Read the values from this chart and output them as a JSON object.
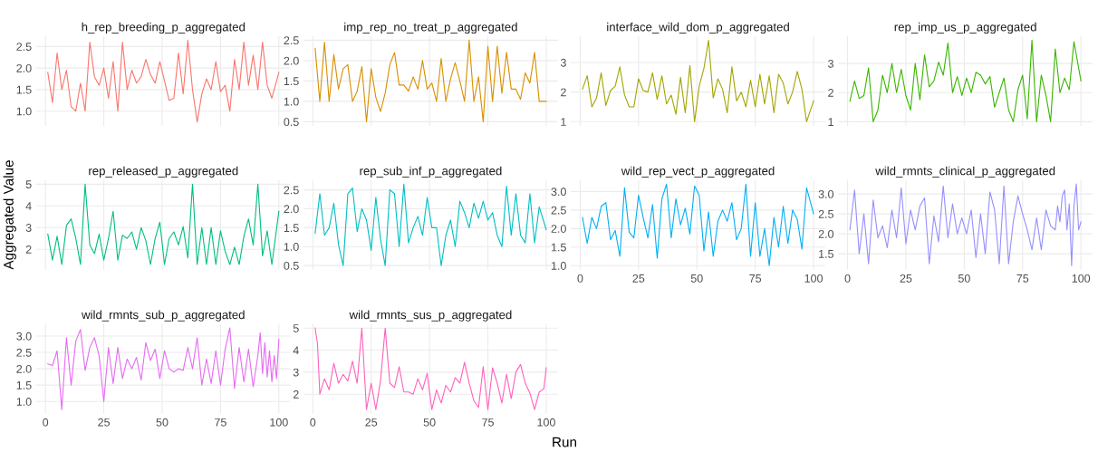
{
  "chart_data": [
    {
      "type": "line",
      "title": "h_rep_breeding_p_aggregated",
      "x": [
        1,
        3,
        5,
        7,
        9,
        11,
        13,
        15,
        17,
        19,
        21,
        23,
        25,
        27,
        29,
        31,
        33,
        35,
        37,
        39,
        41,
        43,
        45,
        47,
        49,
        51,
        53,
        55,
        57,
        59,
        61,
        63,
        65,
        67,
        69,
        71,
        73,
        75,
        77,
        79,
        81,
        83,
        85,
        87,
        89,
        91,
        93,
        95,
        97,
        100
      ],
      "series": [
        {
          "color": "#f8766d",
          "values": [
            1.9,
            1.2,
            2.35,
            1.5,
            1.95,
            1.1,
            1.0,
            1.65,
            1.0,
            2.6,
            1.8,
            1.6,
            2.0,
            1.3,
            2.15,
            1.0,
            2.6,
            1.5,
            1.95,
            1.65,
            1.8,
            2.2,
            1.85,
            1.65,
            2.15,
            1.7,
            1.25,
            1.3,
            2.35,
            1.4,
            2.65,
            1.5,
            0.75,
            1.4,
            1.75,
            1.5,
            2.15,
            1.45,
            1.6,
            1.0,
            2.2,
            1.5,
            2.6,
            1.6,
            2.3,
            1.5,
            2.6,
            1.6,
            1.3,
            1.9
          ]
        }
      ],
      "xlim": [
        -3.95,
        104.95
      ],
      "ylim": [
        0.66,
        2.74
      ],
      "xticks": [
        0,
        25,
        50,
        75,
        100
      ],
      "yticks": [
        {
          "value": 1.0,
          "label": "1.0"
        },
        1.5,
        {
          "value": 2.0,
          "label": "2.0"
        },
        2.5
      ],
      "grid": true,
      "tick_labels": "y"
    },
    {
      "type": "line",
      "title": "imp_rep_no_treat_p_aggregated",
      "x": [
        1,
        3,
        5,
        7,
        9,
        11,
        13,
        15,
        17,
        19,
        21,
        23,
        25,
        27,
        29,
        31,
        33,
        35,
        37,
        39,
        41,
        43,
        45,
        47,
        49,
        51,
        53,
        55,
        57,
        59,
        61,
        63,
        65,
        67,
        69,
        71,
        73,
        75,
        77,
        79,
        81,
        83,
        85,
        87,
        89,
        91,
        93,
        95,
        97,
        100
      ],
      "series": [
        {
          "color": "#d89000",
          "values": [
            2.3,
            1.0,
            2.45,
            1.0,
            2.15,
            1.3,
            1.8,
            1.9,
            1.0,
            1.25,
            1.85,
            0.5,
            1.8,
            1.1,
            0.75,
            1.2,
            1.9,
            2.2,
            1.4,
            1.4,
            1.25,
            1.6,
            1.3,
            2.0,
            1.3,
            1.45,
            1.0,
            2.05,
            1.0,
            1.55,
            1.95,
            1.5,
            1.0,
            2.5,
            1.0,
            1.6,
            0.5,
            2.35,
            1.0,
            2.35,
            1.2,
            2.2,
            1.3,
            1.3,
            1.05,
            1.7,
            1.45,
            2.2,
            1.0,
            1.0
          ]
        }
      ],
      "xlim": [
        -3.95,
        104.95
      ],
      "ylim": [
        0.4,
        2.6
      ],
      "xticks": [
        0,
        25,
        50,
        75,
        100
      ],
      "yticks": [
        0.5,
        {
          "value": 1.0,
          "label": "1.0"
        },
        1.5,
        {
          "value": 2.0,
          "label": "2.0"
        },
        2.5
      ],
      "grid": true,
      "tick_labels": "y"
    },
    {
      "type": "line",
      "title": "interface_wild_dom_p_aggregated",
      "x": [
        1,
        3,
        5,
        7,
        9,
        11,
        13,
        15,
        17,
        19,
        21,
        23,
        25,
        27,
        29,
        31,
        33,
        35,
        37,
        39,
        41,
        43,
        45,
        47,
        49,
        51,
        53,
        55,
        57,
        59,
        61,
        63,
        65,
        67,
        69,
        71,
        73,
        75,
        77,
        79,
        81,
        83,
        85,
        87,
        89,
        91,
        93,
        95,
        97,
        100
      ],
      "series": [
        {
          "color": "#a3a500",
          "values": [
            2.1,
            2.55,
            1.5,
            1.8,
            2.65,
            1.55,
            2.05,
            2.2,
            2.85,
            1.9,
            1.5,
            1.5,
            2.45,
            2.05,
            2.0,
            2.65,
            1.75,
            2.55,
            1.6,
            1.9,
            1.25,
            2.5,
            1.3,
            2.9,
            1.0,
            2.2,
            2.8,
            3.75,
            1.8,
            2.45,
            2.1,
            1.3,
            2.85,
            1.7,
            2.0,
            1.5,
            2.4,
            1.5,
            2.6,
            1.6,
            2.55,
            1.3,
            2.6,
            2.3,
            1.6,
            2.0,
            2.7,
            2.1,
            1.0,
            1.7
          ]
        }
      ],
      "xlim": [
        -3.95,
        104.95
      ],
      "ylim": [
        0.86,
        3.89
      ],
      "xticks": [
        0,
        25,
        50,
        75,
        100
      ],
      "yticks": [
        1,
        2,
        3
      ],
      "grid": true,
      "tick_labels": "y"
    },
    {
      "type": "line",
      "title": "rep_imp_us_p_aggregated",
      "x": [
        1,
        3,
        5,
        7,
        9,
        11,
        13,
        15,
        17,
        19,
        21,
        23,
        25,
        27,
        29,
        31,
        33,
        35,
        37,
        39,
        41,
        43,
        45,
        47,
        49,
        51,
        53,
        55,
        57,
        59,
        61,
        63,
        65,
        67,
        69,
        71,
        73,
        75,
        77,
        79,
        81,
        83,
        85,
        87,
        89,
        91,
        93,
        95,
        97,
        100
      ],
      "series": [
        {
          "color": "#39b600",
          "values": [
            1.7,
            2.4,
            1.8,
            1.9,
            2.85,
            1.0,
            1.4,
            2.6,
            2.0,
            3.0,
            2.0,
            2.8,
            1.9,
            1.4,
            3.0,
            1.75,
            3.3,
            2.2,
            2.4,
            3.05,
            2.6,
            3.7,
            2.0,
            2.55,
            1.9,
            2.5,
            2.0,
            2.7,
            2.6,
            2.3,
            2.55,
            1.5,
            2.0,
            2.5,
            1.4,
            1.0,
            2.1,
            2.6,
            1.1,
            3.8,
            1.0,
            2.6,
            1.9,
            1.0,
            3.5,
            2.0,
            2.5,
            2.1,
            3.75,
            2.4
          ]
        }
      ],
      "xlim": [
        -3.95,
        104.95
      ],
      "ylim": [
        0.86,
        3.94
      ],
      "xticks": [
        0,
        25,
        50,
        75,
        100
      ],
      "yticks": [
        1,
        2,
        3
      ],
      "grid": true,
      "tick_labels": "y"
    },
    {
      "type": "line",
      "title": "rep_released_p_aggregated",
      "ylabel": "Aggregated Value",
      "x": [
        1,
        3,
        5,
        7,
        9,
        11,
        13,
        15,
        17,
        19,
        21,
        23,
        25,
        27,
        29,
        31,
        33,
        35,
        37,
        39,
        41,
        43,
        45,
        47,
        49,
        51,
        53,
        55,
        57,
        59,
        61,
        63,
        65,
        67,
        69,
        71,
        73,
        75,
        77,
        79,
        81,
        83,
        85,
        87,
        89,
        91,
        93,
        95,
        97,
        100
      ],
      "series": [
        {
          "color": "#00bf7d",
          "values": [
            2.7,
            1.5,
            2.6,
            1.3,
            3.1,
            3.4,
            2.5,
            1.3,
            5.0,
            2.2,
            1.8,
            2.7,
            1.5,
            2.5,
            3.75,
            1.5,
            2.65,
            2.5,
            2.8,
            2.0,
            3.0,
            2.4,
            1.3,
            2.5,
            3.25,
            1.3,
            2.5,
            2.8,
            2.2,
            3.05,
            1.6,
            5.0,
            1.3,
            3.0,
            1.3,
            3.0,
            1.3,
            2.85,
            1.9,
            1.3,
            2.1,
            1.3,
            2.6,
            3.4,
            2.2,
            5.0,
            1.7,
            2.85,
            1.3,
            3.75
          ]
        }
      ],
      "xlim": [
        -3.95,
        104.95
      ],
      "ylim": [
        1.06,
        5.19
      ],
      "xticks": [
        0,
        25,
        50,
        75,
        100
      ],
      "yticks": [
        2,
        3,
        4,
        5
      ],
      "grid": true,
      "tick_labels": "y"
    },
    {
      "type": "line",
      "title": "rep_sub_inf_p_aggregated",
      "x": [
        1,
        3,
        5,
        7,
        9,
        11,
        13,
        15,
        17,
        19,
        21,
        23,
        25,
        27,
        29,
        31,
        33,
        35,
        37,
        39,
        41,
        43,
        45,
        47,
        49,
        51,
        53,
        55,
        57,
        59,
        61,
        63,
        65,
        67,
        69,
        71,
        73,
        75,
        77,
        79,
        81,
        83,
        85,
        87,
        89,
        91,
        93,
        95,
        97,
        100
      ],
      "series": [
        {
          "color": "#00bfc4",
          "values": [
            1.35,
            2.4,
            1.3,
            1.5,
            2.15,
            1.05,
            0.5,
            2.4,
            2.55,
            1.4,
            2.0,
            1.7,
            0.9,
            2.3,
            1.2,
            0.5,
            2.5,
            2.4,
            1.0,
            2.65,
            1.1,
            1.5,
            1.8,
            1.3,
            2.3,
            1.5,
            1.5,
            0.5,
            1.3,
            1.7,
            1.0,
            2.2,
            1.9,
            1.5,
            2.15,
            1.75,
            2.2,
            1.7,
            1.9,
            1.3,
            1.0,
            2.6,
            1.3,
            2.4,
            1.3,
            1.1,
            2.4,
            1.1,
            2.05,
            1.45
          ]
        }
      ],
      "xlim": [
        -3.95,
        104.95
      ],
      "ylim": [
        0.39,
        2.76
      ],
      "xticks": [
        0,
        25,
        50,
        75,
        100
      ],
      "yticks": [
        0.5,
        {
          "value": 1.0,
          "label": "1.0"
        },
        1.5,
        {
          "value": 2.0,
          "label": "2.0"
        },
        2.5
      ],
      "grid": true,
      "tick_labels": "y"
    },
    {
      "type": "line",
      "title": "wild_rep_vect_p_aggregated",
      "x": [
        1,
        3,
        5,
        7,
        9,
        11,
        13,
        15,
        17,
        19,
        21,
        23,
        25,
        27,
        29,
        31,
        33,
        35,
        37,
        39,
        41,
        43,
        45,
        47,
        49,
        51,
        53,
        55,
        57,
        59,
        61,
        63,
        65,
        67,
        69,
        71,
        73,
        75,
        77,
        79,
        81,
        83,
        85,
        87,
        89,
        91,
        93,
        95,
        97,
        100
      ],
      "series": [
        {
          "color": "#00b0f6",
          "values": [
            2.3,
            1.6,
            2.3,
            2.0,
            2.6,
            2.7,
            1.7,
            1.95,
            1.25,
            3.1,
            1.9,
            1.75,
            2.9,
            2.3,
            1.75,
            2.65,
            1.2,
            2.8,
            3.2,
            1.75,
            2.8,
            2.1,
            2.55,
            1.85,
            3.15,
            2.9,
            1.4,
            2.45,
            1.25,
            2.2,
            2.5,
            2.2,
            2.7,
            1.7,
            2.0,
            3.2,
            1.25,
            2.7,
            1.25,
            2.0,
            1.0,
            2.3,
            1.5,
            2.6,
            1.6,
            2.5,
            2.25,
            1.45,
            3.1,
            2.4
          ]
        }
      ],
      "xlim": [
        -3.95,
        104.95
      ],
      "ylim": [
        0.89,
        3.31
      ],
      "xticks": [
        0,
        25,
        50,
        75,
        100
      ],
      "yticks": [
        {
          "value": 1.0,
          "label": "1.0"
        },
        1.5,
        {
          "value": 2.0,
          "label": "2.0"
        },
        2.5,
        {
          "value": 3.0,
          "label": "3.0"
        }
      ],
      "grid": true
    },
    {
      "type": "line",
      "title": "wild_rmnts_clinical_p_aggregated",
      "x": [
        1,
        3,
        5,
        7,
        9,
        11,
        13,
        15,
        17,
        19,
        21,
        23,
        25,
        27,
        29,
        31,
        33,
        35,
        37,
        39,
        41,
        43,
        45,
        47,
        49,
        51,
        53,
        55,
        57,
        59,
        61,
        63,
        65,
        67,
        69,
        71,
        73,
        75,
        77,
        79,
        81,
        83,
        85,
        87,
        89,
        90,
        91,
        92,
        93,
        94,
        95,
        96,
        97,
        98,
        99,
        100
      ],
      "series": [
        {
          "color": "#9590ff",
          "values": [
            2.1,
            3.1,
            1.5,
            2.5,
            1.25,
            2.85,
            1.9,
            2.2,
            1.65,
            2.6,
            1.9,
            3.15,
            1.75,
            2.6,
            2.1,
            2.7,
            2.9,
            1.25,
            2.45,
            1.8,
            3.2,
            1.9,
            2.75,
            2.0,
            2.4,
            2.0,
            2.6,
            1.4,
            2.5,
            1.5,
            3.05,
            2.6,
            1.25,
            3.2,
            1.25,
            2.3,
            2.95,
            2.5,
            2.1,
            1.6,
            2.4,
            1.6,
            2.6,
            2.2,
            2.1,
            2.7,
            2.3,
            2.95,
            3.1,
            2.1,
            2.75,
            1.2,
            2.7,
            3.25,
            2.1,
            2.3
          ]
        }
      ],
      "xlim": [
        -3.95,
        104.95
      ],
      "ylim": [
        1.1,
        3.35
      ],
      "xticks": [
        0,
        25,
        50,
        75,
        100
      ],
      "yticks": [
        1.5,
        {
          "value": 2.0,
          "label": "2.0"
        },
        2.5,
        {
          "value": 3.0,
          "label": "3.0"
        }
      ],
      "grid": true
    },
    {
      "type": "line",
      "title": "wild_rmnts_sub_p_aggregated",
      "x": [
        1,
        3,
        5,
        7,
        9,
        11,
        13,
        15,
        17,
        19,
        21,
        23,
        25,
        27,
        29,
        31,
        33,
        35,
        37,
        39,
        41,
        43,
        45,
        47,
        49,
        51,
        53,
        55,
        57,
        59,
        61,
        63,
        65,
        67,
        69,
        71,
        73,
        75,
        77,
        79,
        81,
        83,
        85,
        87,
        89,
        91,
        92,
        93,
        94,
        95,
        96,
        97,
        98,
        99,
        100
      ],
      "series": [
        {
          "color": "#e76bf3",
          "values": [
            2.15,
            2.1,
            2.55,
            0.75,
            2.95,
            1.5,
            2.85,
            3.2,
            1.95,
            2.65,
            2.95,
            2.4,
            1.0,
            2.65,
            1.55,
            2.65,
            1.7,
            2.3,
            2.0,
            2.35,
            1.65,
            2.8,
            2.25,
            2.6,
            1.7,
            2.55,
            2.0,
            1.9,
            2.0,
            1.95,
            2.65,
            2.0,
            2.95,
            1.5,
            2.3,
            1.55,
            2.55,
            1.5,
            2.6,
            3.25,
            1.4,
            2.65,
            1.6,
            2.6,
            1.45,
            2.4,
            3.1,
            1.85,
            2.8,
            1.75,
            2.55,
            1.6,
            2.4,
            1.7,
            2.9
          ]
        }
      ],
      "xlim": [
        -3.95,
        104.95
      ],
      "ylim": [
        0.63,
        3.37
      ],
      "xticks": [
        0,
        25,
        50,
        75,
        100
      ],
      "yticks": [
        {
          "value": 1.0,
          "label": "1.0"
        },
        1.5,
        {
          "value": 2.0,
          "label": "2.0"
        },
        2.5,
        {
          "value": 3.0,
          "label": "3.0"
        }
      ],
      "grid": true
    },
    {
      "type": "line",
      "title": "wild_rmnts_sus_p_aggregated",
      "xlabel": "Run",
      "x": [
        1,
        2,
        3,
        5,
        7,
        9,
        11,
        13,
        15,
        17,
        19,
        21,
        23,
        25,
        27,
        29,
        31,
        33,
        35,
        37,
        39,
        41,
        43,
        45,
        47,
        49,
        51,
        53,
        55,
        57,
        59,
        61,
        63,
        65,
        67,
        69,
        71,
        73,
        75,
        77,
        79,
        81,
        83,
        85,
        87,
        89,
        91,
        93,
        95,
        97,
        99,
        100
      ],
      "series": [
        {
          "color": "#ff62bc",
          "values": [
            5.0,
            4.3,
            2.0,
            2.7,
            2.2,
            3.4,
            2.5,
            2.9,
            2.6,
            3.5,
            2.5,
            5.0,
            1.3,
            2.5,
            1.3,
            2.6,
            5.0,
            2.5,
            2.3,
            3.25,
            2.1,
            2.1,
            2.0,
            2.7,
            2.2,
            2.95,
            1.3,
            2.2,
            1.6,
            2.4,
            2.1,
            2.75,
            2.5,
            3.45,
            2.5,
            1.7,
            1.4,
            3.25,
            1.3,
            3.2,
            2.5,
            1.6,
            2.9,
            1.8,
            3.0,
            3.35,
            2.5,
            2.05,
            1.3,
            2.1,
            2.25,
            3.2
          ]
        }
      ],
      "xlim": [
        -3.95,
        104.95
      ],
      "ylim": [
        1.12,
        5.19
      ],
      "xticks": [
        0,
        25,
        50,
        75,
        100
      ],
      "yticks": [
        2,
        3,
        4,
        5
      ],
      "grid": true
    }
  ]
}
